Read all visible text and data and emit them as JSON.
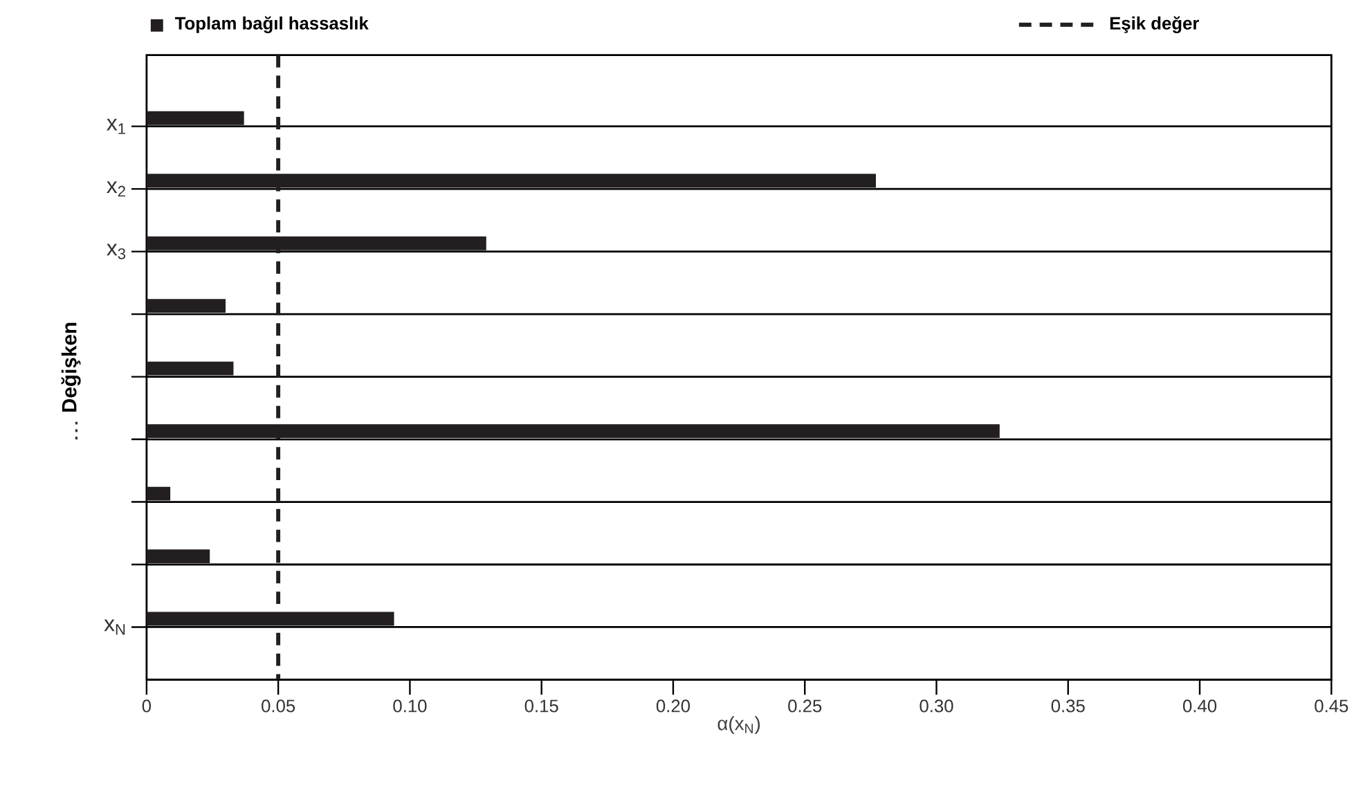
{
  "chart_data": {
    "type": "bar",
    "orientation": "horizontal",
    "xlabel": "α(x$_{N}$)",
    "ylabel": "Değişken",
    "categories": [
      "x$_{1}$",
      "x$_{2}$",
      "x$_{3}$",
      null,
      null,
      null,
      null,
      null,
      "x$_{N}$"
    ],
    "series": [
      {
        "name": "Toplam bağıl hassaslık",
        "color": "#231f20",
        "values": [
          0.037,
          0.277,
          0.129,
          0.03,
          0.033,
          0.324,
          0.009,
          0.024,
          0.094
        ]
      }
    ],
    "xlim": [
      0,
      0.45
    ],
    "xticks": [
      0,
      0.05,
      {
        "value": 0.1,
        "label": "0.10"
      },
      0.15,
      {
        "value": 0.2,
        "label": "0.20"
      },
      0.25,
      {
        "value": 0.3,
        "label": "0.30"
      },
      0.35,
      {
        "value": 0.4,
        "label": "0.40"
      },
      0.45
    ],
    "ref_lines": [
      {
        "axis": "x",
        "value": 0.05,
        "label": "Eşik değer",
        "color": "#231f20",
        "line_style": "dashed"
      }
    ],
    "annotations": [
      "⋮"
    ],
    "grid": "y",
    "legend": "top"
  }
}
